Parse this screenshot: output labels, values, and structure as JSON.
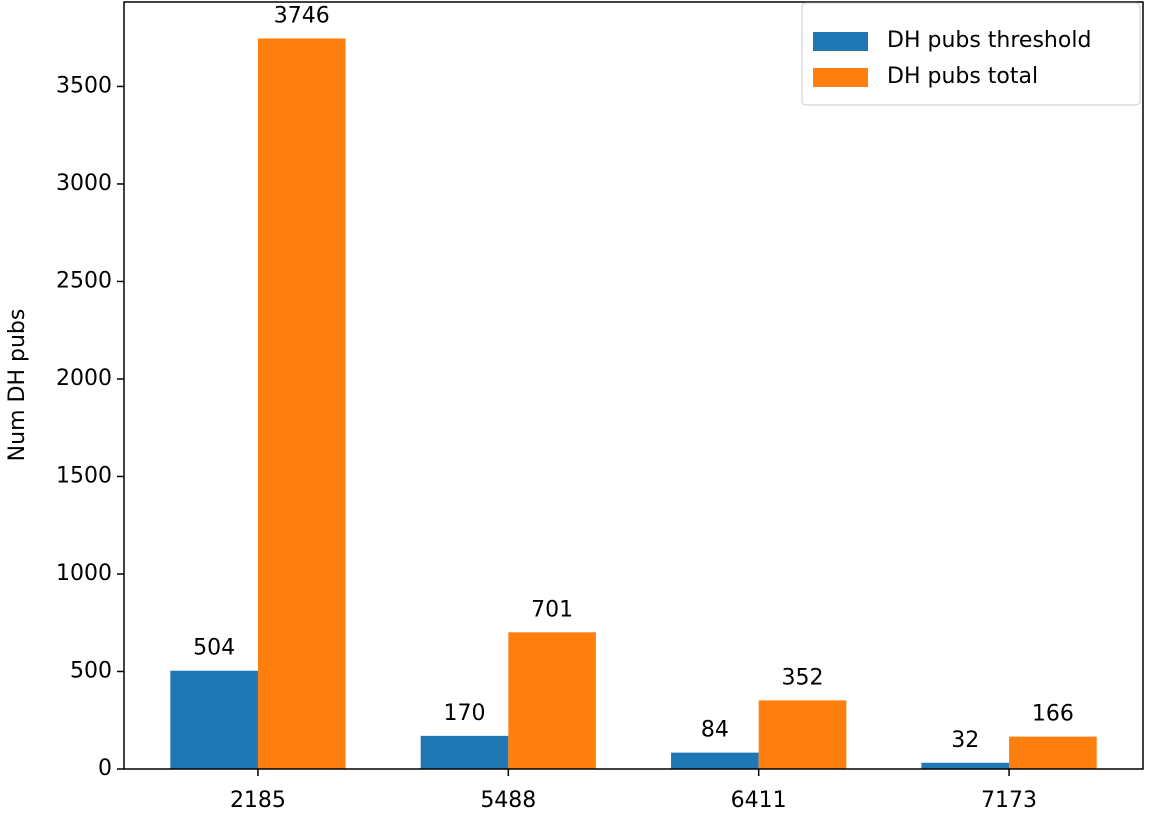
{
  "chart_data": {
    "type": "bar",
    "ylabel": "Num DH pubs",
    "categories": [
      "2185",
      "5488",
      "6411",
      "7173"
    ],
    "series": [
      {
        "name": "DH pubs threshold",
        "color": "#1f77b4",
        "values": [
          504,
          170,
          84,
          32
        ]
      },
      {
        "name": "DH pubs total",
        "color": "#ff7f0e",
        "values": [
          3746,
          701,
          352,
          166
        ]
      }
    ],
    "ylim": [
      0,
      3933
    ],
    "yticks": [
      0,
      500,
      1000,
      1500,
      2000,
      2500,
      3000,
      3500
    ],
    "legend": "upper right",
    "grid": false,
    "value_labels_shown": true
  }
}
